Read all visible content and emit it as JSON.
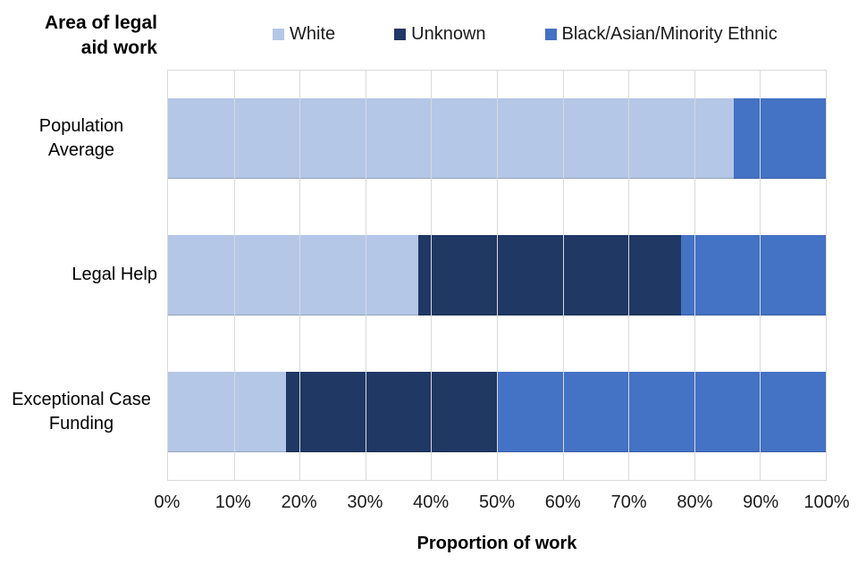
{
  "colors": {
    "series_white": "#b4c7e7",
    "series_unknown": "#1f3864",
    "series_bame": "#4472c4",
    "gridline": "#d9d9d9",
    "text": "#000000",
    "background": "#ffffff"
  },
  "chart_data": {
    "type": "bar",
    "orientation": "horizontal",
    "stacked": true,
    "y_axis_title": "Area of legal aid work",
    "x_axis_title": "Proportion of work",
    "categories": [
      "Population Average",
      "Legal Help",
      "Exceptional Case Funding"
    ],
    "series": [
      {
        "name": "White",
        "color": "#b4c7e7",
        "values": [
          86,
          38,
          18
        ]
      },
      {
        "name": "Unknown",
        "color": "#1f3864",
        "values": [
          0,
          40,
          32
        ]
      },
      {
        "name": "Black/Asian/Minority Ethnic",
        "color": "#4472c4",
        "values": [
          14,
          22,
          50
        ]
      }
    ],
    "x_ticks": [
      "0%",
      "10%",
      "20%",
      "30%",
      "40%",
      "50%",
      "60%",
      "70%",
      "80%",
      "90%",
      "100%"
    ],
    "xlim": [
      0,
      100
    ],
    "legend_position": "top",
    "grid": "vertical"
  }
}
